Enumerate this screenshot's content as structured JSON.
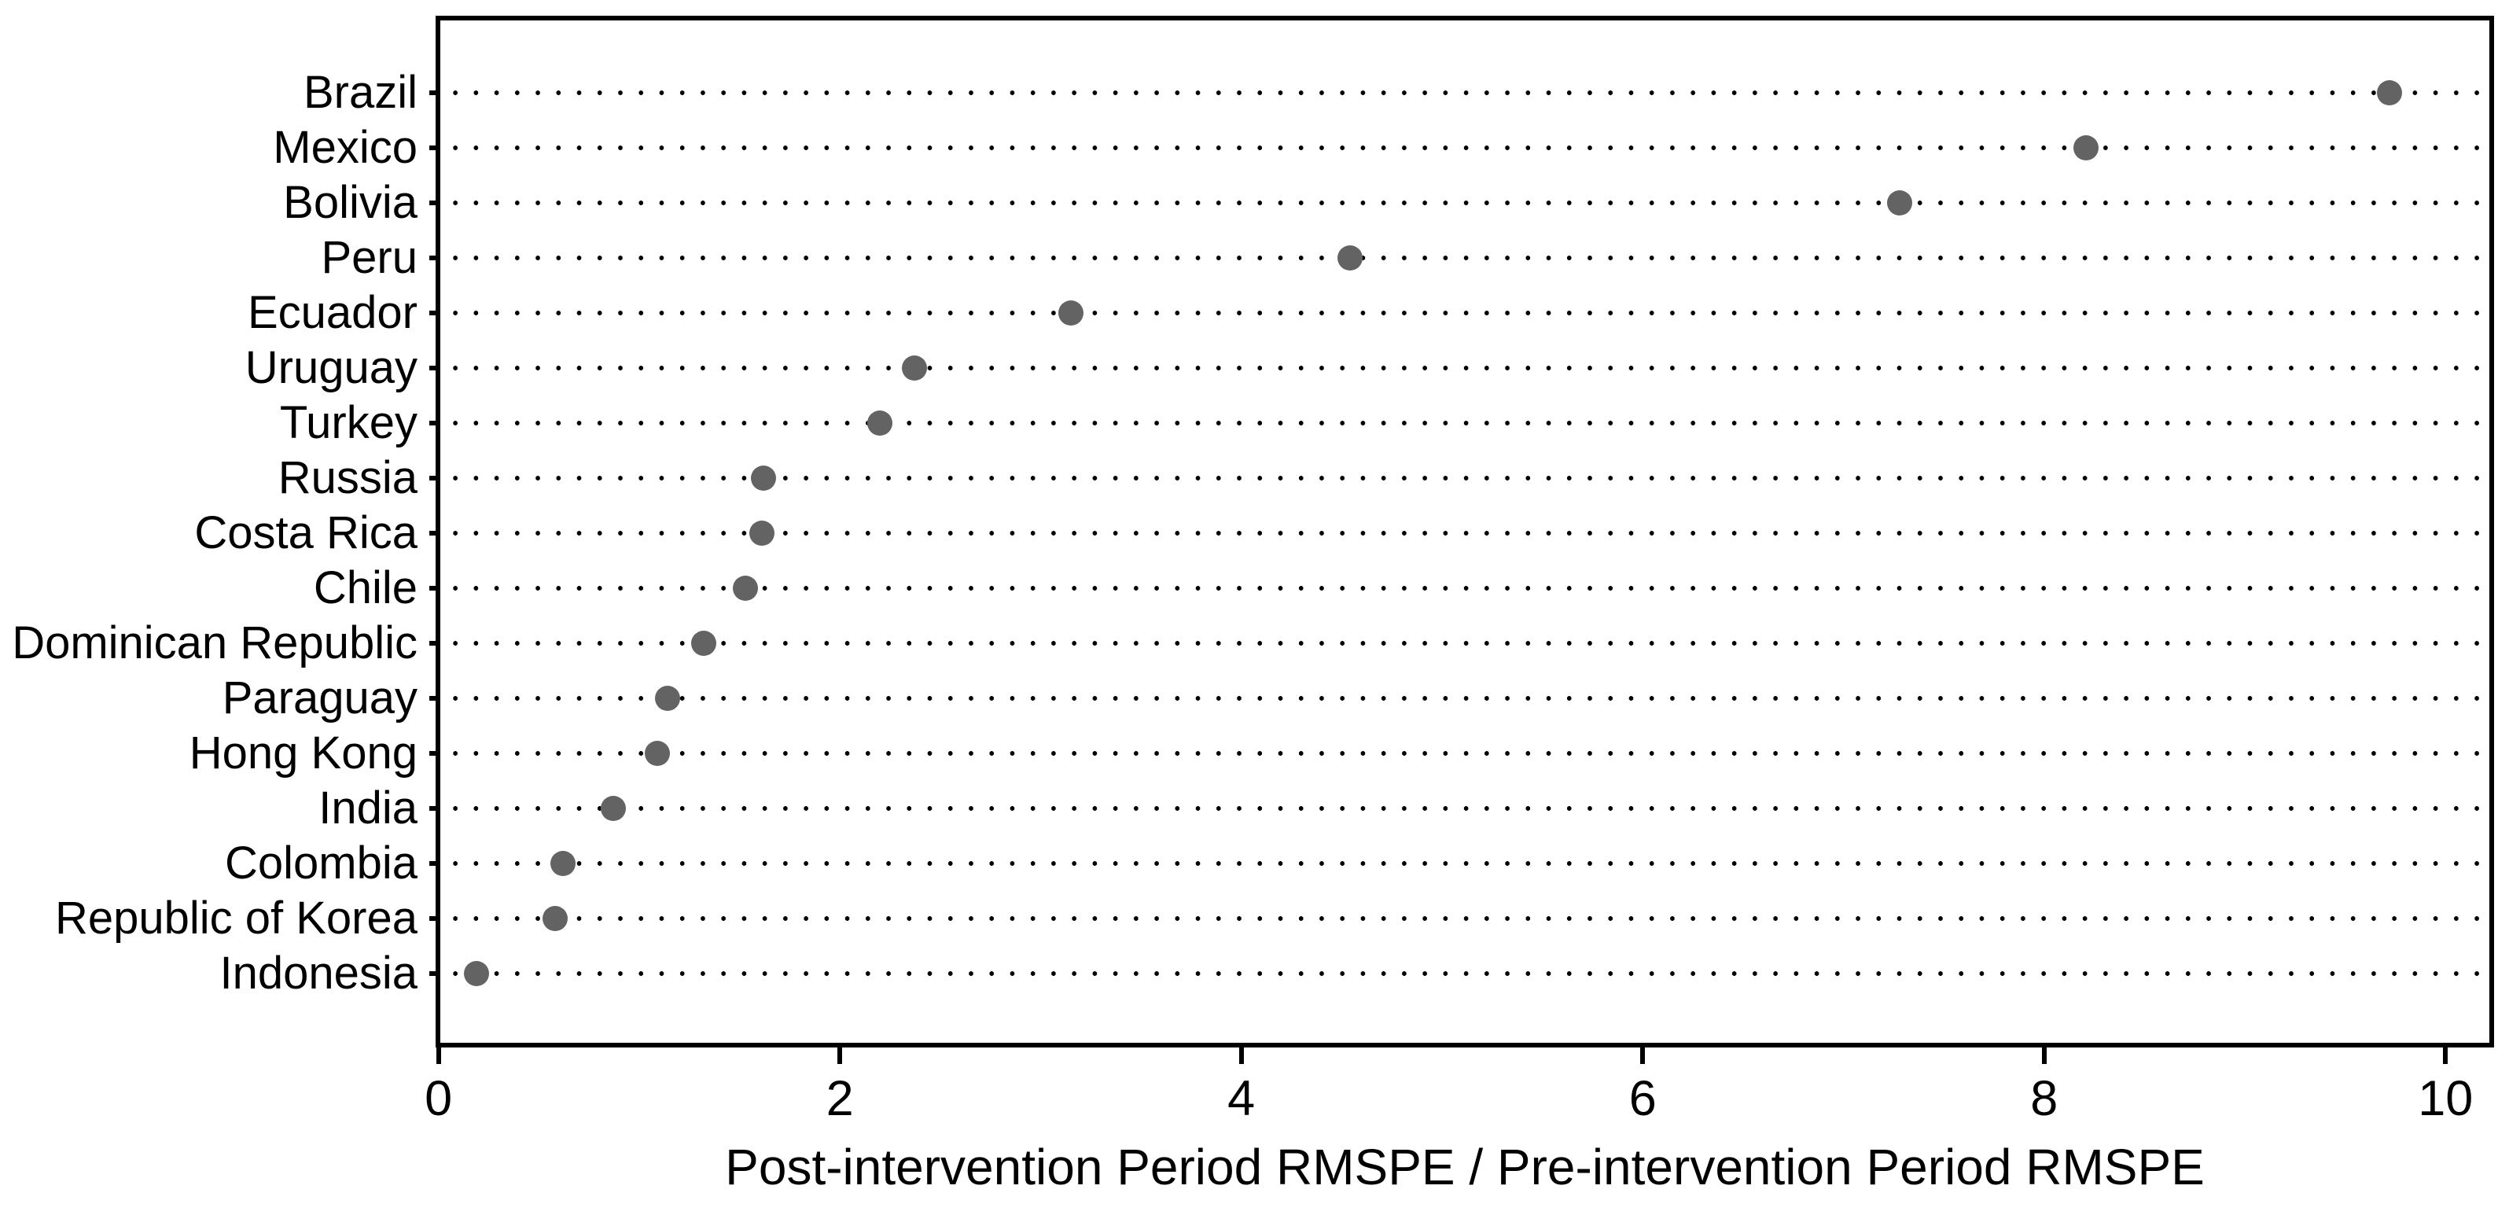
{
  "chart_data": {
    "type": "scatter",
    "variant": "horizontal-dot-plot",
    "title": "",
    "xlabel": "Post-intervention Period RMSPE / Pre-intervention Period RMSPE",
    "ylabel": "",
    "categories": [
      "Brazil",
      "Mexico",
      "Bolivia",
      "Peru",
      "Ecuador",
      "Uruguay",
      "Turkey",
      "Russia",
      "Costa Rica",
      "Chile",
      "Dominican Republic",
      "Paraguay",
      "Hong Kong",
      "India",
      "Colombia",
      "Republic of Korea",
      "Indonesia"
    ],
    "values": [
      9.72,
      8.21,
      7.28,
      4.54,
      3.15,
      2.37,
      2.2,
      1.62,
      1.61,
      1.53,
      1.32,
      1.14,
      1.09,
      0.87,
      0.62,
      0.58,
      0.19
    ],
    "x_ticks": [
      0,
      2,
      4,
      6,
      8,
      10
    ],
    "xlim": [
      0,
      10.25
    ],
    "grid": "dotted-horizontal-leader-lines",
    "legend": "none",
    "marker_color": "#636363",
    "leader_dot_color": "#000000",
    "axis_color": "#000000",
    "background_color": "#ffffff"
  }
}
